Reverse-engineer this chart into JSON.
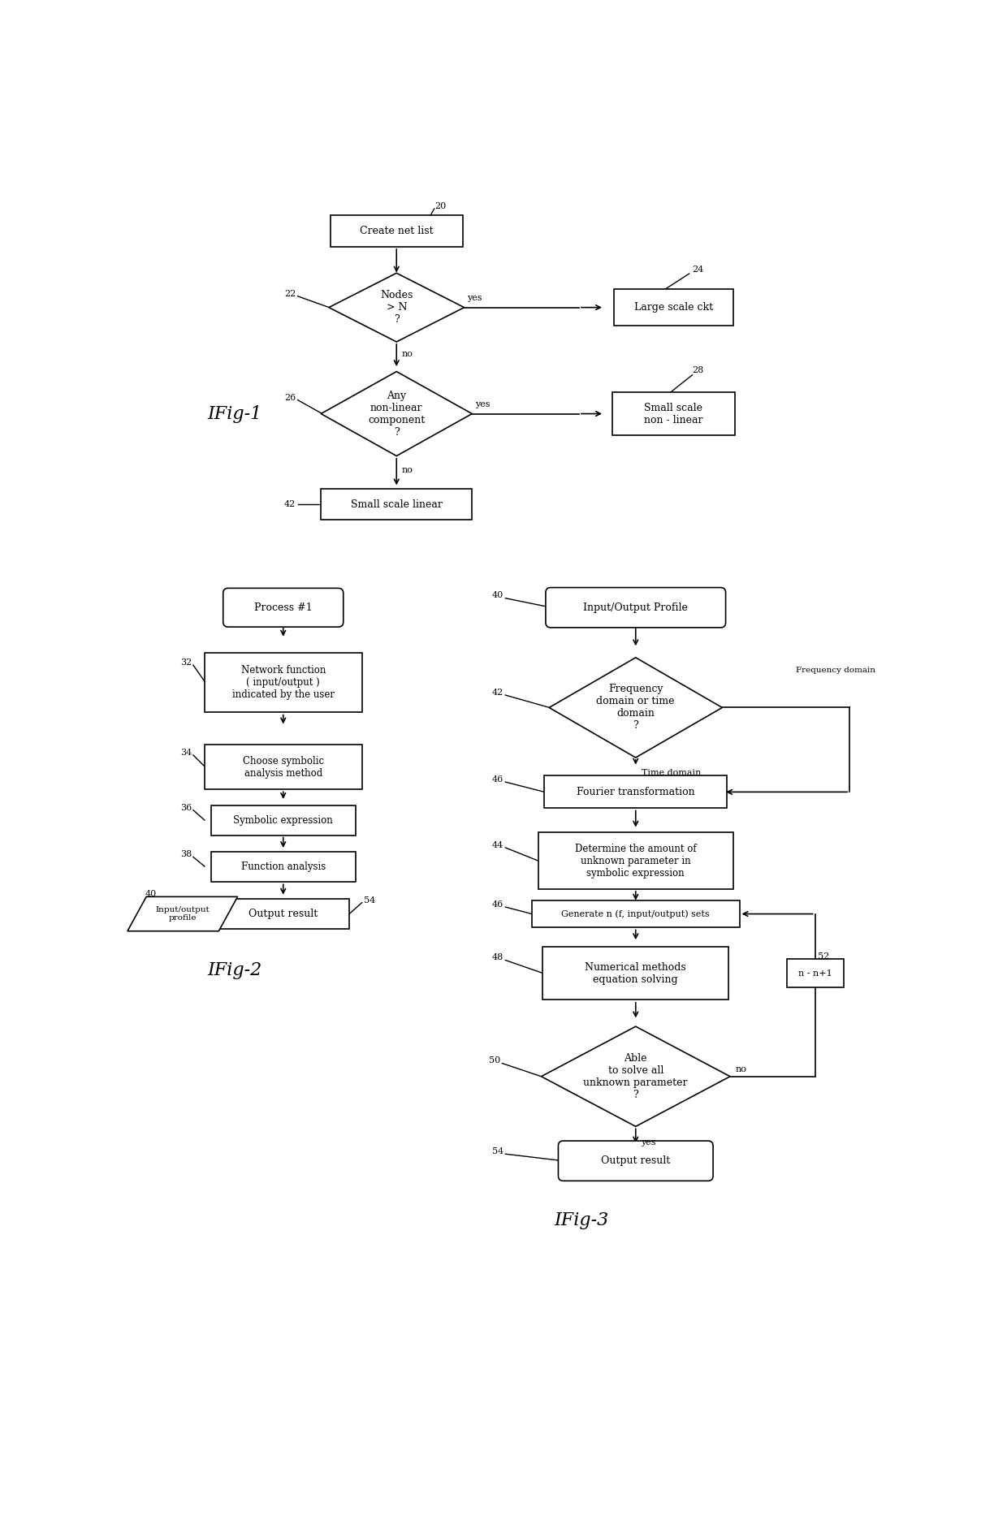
{
  "bg_color": "#ffffff",
  "fig_width": 12.4,
  "fig_height": 18.72,
  "line_color": "#000000",
  "text_color": "#000000",
  "font_size": 9,
  "small_font_size": 8,
  "label_font_size": 8,
  "fig1_label": "IFig-1",
  "fig2_label": "IFig-2",
  "fig3_label": "IFig-3"
}
